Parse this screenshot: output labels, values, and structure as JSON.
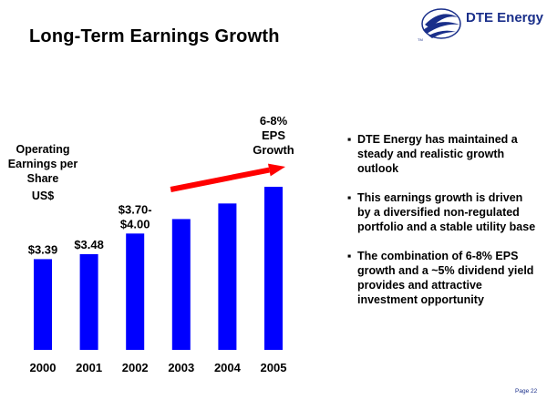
{
  "slide": {
    "title": "Long-Term Earnings Growth",
    "brand": "DTE Energy",
    "brand_mark": "TM",
    "page_label": "Page 22",
    "colors": {
      "bar": "#0000ff",
      "arrow": "#ff0000",
      "brand": "#1a2f8a"
    }
  },
  "chart_data": {
    "type": "bar",
    "title": "",
    "ylabel_lines": [
      "Operating",
      "Earnings per",
      "Share"
    ],
    "ylabel_unit": "US$",
    "categories": [
      "2000",
      "2001",
      "2002",
      "2003",
      "2004",
      "2005"
    ],
    "values": [
      3.39,
      3.48,
      3.85,
      4.11,
      4.39,
      4.69
    ],
    "ylim": [
      1.76,
      4.69
    ],
    "data_labels": [
      "$3.39",
      "$3.48",
      "$3.70-\n$4.00",
      "",
      "",
      ""
    ],
    "annotation": {
      "text": "6-8%\nEPS\nGrowth",
      "arrow_from_category": "2002",
      "arrow_to_category": "2005"
    }
  },
  "bullets": [
    "DTE Energy has maintained a steady and realistic growth outlook",
    "This earnings growth is driven by a diversified non-regulated portfolio and a stable utility base",
    "The combination of 6-8% EPS growth and a ~5% dividend yield provides and attractive investment opportunity"
  ],
  "bullet_glyph": "▪"
}
